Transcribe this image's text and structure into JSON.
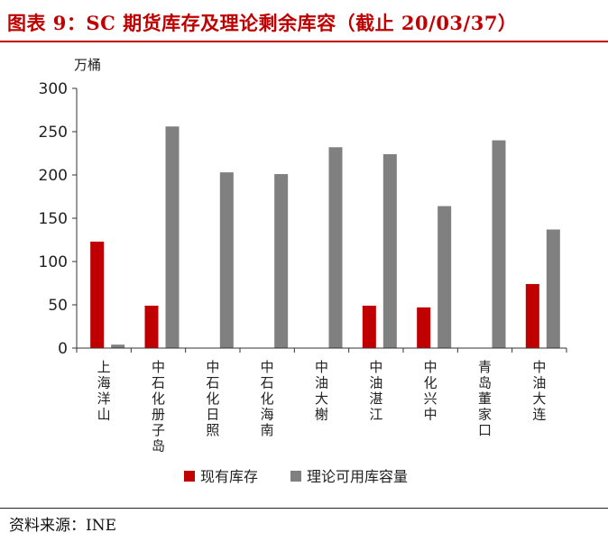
{
  "title": "图表 9：SC 期货库存及理论剩余库容（截止 20/03/37）",
  "source": "资料来源：INE",
  "colors": {
    "current": "#c00000",
    "remaining": "#808080",
    "title": "#c00000"
  },
  "chart_data": {
    "type": "bar",
    "unit": "万桶",
    "ylim": [
      0,
      300
    ],
    "yticks": [
      0,
      50,
      100,
      150,
      200,
      250,
      300
    ],
    "categories": [
      "上海洋山",
      "中石化册子岛",
      "中石化日照",
      "中石化海南",
      "中油大榭",
      "中油湛江",
      "中化兴中",
      "青岛董家口",
      "中油大连"
    ],
    "series": [
      {
        "name": "现有库存",
        "values": [
          123,
          49,
          0,
          0,
          0,
          49,
          47,
          0,
          74
        ]
      },
      {
        "name": "理论可用库容量",
        "values": [
          4,
          256,
          203,
          201,
          232,
          224,
          164,
          240,
          137
        ]
      }
    ],
    "legend_position": "bottom"
  }
}
